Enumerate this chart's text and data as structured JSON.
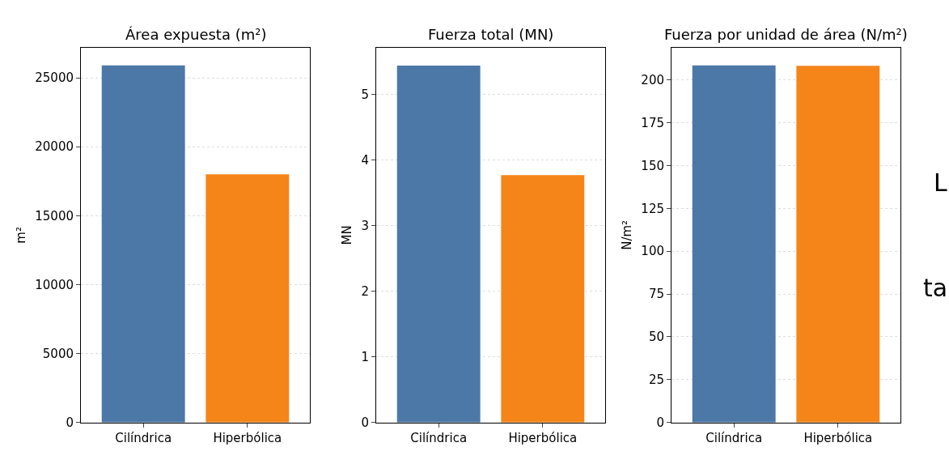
{
  "chart_data": [
    {
      "type": "bar",
      "title": "Área expuesta (m²)",
      "ylabel": "m²",
      "categories": [
        "Cilíndrica",
        "Hiperbólica"
      ],
      "values": [
        25900,
        18000
      ],
      "colors": [
        "#4c78a8",
        "#f58518"
      ],
      "ylim": [
        0,
        27170
      ],
      "yticks": [
        0,
        5000,
        10000,
        15000,
        20000,
        25000
      ],
      "grid": "y"
    },
    {
      "type": "bar",
      "title": "Fuerza total (MN)",
      "ylabel": "MN",
      "categories": [
        "Cilíndrica",
        "Hiperbólica"
      ],
      "values": [
        5.44,
        3.77
      ],
      "colors": [
        "#4c78a8",
        "#f58518"
      ],
      "ylim": [
        0,
        5.71
      ],
      "yticks": [
        0,
        1,
        2,
        3,
        4,
        5
      ],
      "grid": "y"
    },
    {
      "type": "bar",
      "title": "Fuerza por unidad de área (N/m²)",
      "ylabel": "N/m²",
      "categories": [
        "Cilíndrica",
        "Hiperbólica"
      ],
      "values": [
        208.5,
        208.2
      ],
      "colors": [
        "#4c78a8",
        "#f58518"
      ],
      "ylim": [
        0,
        218.7
      ],
      "yticks": [
        0,
        25,
        50,
        75,
        100,
        125,
        150,
        175,
        200
      ],
      "grid": "y",
      "annotations": [
        "L",
        "ta"
      ]
    }
  ]
}
